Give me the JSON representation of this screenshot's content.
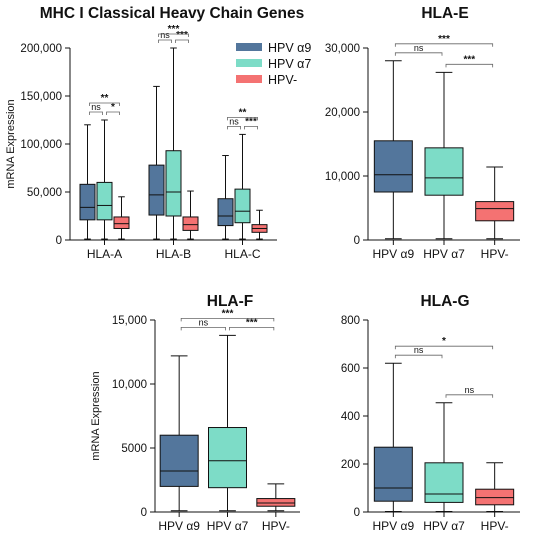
{
  "colors": {
    "hpv_a9": "#53769c",
    "hpv_a7": "#7ddcc7",
    "hpv_neg": "#f47272"
  },
  "chart_data": [
    {
      "type": "box",
      "title": "MHC I Classical Heavy Chain Genes",
      "ylabel": "mRNA Expression",
      "ylim": [
        0,
        200000
      ],
      "yticks": [
        "0",
        "50,000",
        "100,000",
        "150,000",
        "200,000"
      ],
      "legend": {
        "position": "top-right",
        "entries": [
          "HPV α9",
          "HPV α7",
          "HPV-"
        ]
      },
      "categories": [
        "HLA-A",
        "HLA-B",
        "HLA-C"
      ],
      "groups": [
        {
          "category": "HLA-A",
          "boxes": [
            {
              "series": "HPV α9",
              "min": 1000,
              "q1": 21000,
              "median": 34000,
              "q3": 58000,
              "max": 120000
            },
            {
              "series": "HPV α7",
              "min": 1000,
              "q1": 21000,
              "median": 36000,
              "q3": 60000,
              "max": 125000
            },
            {
              "series": "HPV-",
              "min": 1000,
              "q1": 12000,
              "median": 17000,
              "q3": 24000,
              "max": 45000
            }
          ],
          "sig": [
            {
              "from": 0,
              "to": 1,
              "label": "ns",
              "level": 0
            },
            {
              "from": 1,
              "to": 2,
              "label": "*",
              "level": 0
            },
            {
              "from": 0,
              "to": 2,
              "label": "**",
              "level": 1
            }
          ]
        },
        {
          "category": "HLA-B",
          "boxes": [
            {
              "series": "HPV α9",
              "min": 1000,
              "q1": 26000,
              "median": 47000,
              "q3": 78000,
              "max": 160000
            },
            {
              "series": "HPV α7",
              "min": 1000,
              "q1": 25000,
              "median": 50000,
              "q3": 93000,
              "max": 200000
            },
            {
              "series": "HPV-",
              "min": 1000,
              "q1": 10000,
              "median": 16000,
              "q3": 24000,
              "max": 51000
            }
          ],
          "sig": [
            {
              "from": 0,
              "to": 1,
              "label": "ns",
              "level": 0
            },
            {
              "from": 1,
              "to": 2,
              "label": "***",
              "level": 0
            },
            {
              "from": 0,
              "to": 2,
              "label": "***",
              "level": 1
            }
          ]
        },
        {
          "category": "HLA-C",
          "boxes": [
            {
              "series": "HPV α9",
              "min": 1000,
              "q1": 15000,
              "median": 25000,
              "q3": 43000,
              "max": 88000
            },
            {
              "series": "HPV α7",
              "min": 1000,
              "q1": 18000,
              "median": 30000,
              "q3": 53000,
              "max": 110000
            },
            {
              "series": "HPV-",
              "min": 1000,
              "q1": 8000,
              "median": 12000,
              "q3": 16000,
              "max": 31000
            }
          ],
          "sig": [
            {
              "from": 0,
              "to": 1,
              "label": "ns",
              "level": 0
            },
            {
              "from": 1,
              "to": 2,
              "label": "***",
              "level": 0
            },
            {
              "from": 0,
              "to": 2,
              "label": "**",
              "level": 1
            }
          ]
        }
      ]
    },
    {
      "type": "box",
      "title": "HLA-E",
      "ylabel": "",
      "ylim": [
        0,
        30000
      ],
      "yticks": [
        "0",
        "10,000",
        "20,000",
        "30,000"
      ],
      "categories": [
        "HPV α9",
        "HPV α7",
        "HPV-"
      ],
      "boxes": [
        {
          "series": "HPV α9",
          "min": 200,
          "q1": 7500,
          "median": 10200,
          "q3": 15500,
          "max": 28000
        },
        {
          "series": "HPV α7",
          "min": 200,
          "q1": 7000,
          "median": 9700,
          "q3": 14400,
          "max": 26200
        },
        {
          "series": "HPV-",
          "min": 200,
          "q1": 3000,
          "median": 4900,
          "q3": 6000,
          "max": 11400
        }
      ],
      "sig": [
        {
          "from": 0,
          "to": 1,
          "label": "ns",
          "level": 0
        },
        {
          "from": 1,
          "to": 2,
          "label": "***",
          "level": 0
        },
        {
          "from": 0,
          "to": 2,
          "label": "***",
          "level": 1
        }
      ]
    },
    {
      "type": "box",
      "title": "HLA-F",
      "ylabel": "mRNA Expression",
      "ylim": [
        0,
        15000
      ],
      "yticks": [
        "0",
        "5000",
        "10,000",
        "15,000"
      ],
      "categories": [
        "HPV α9",
        "HPV α7",
        "HPV-"
      ],
      "boxes": [
        {
          "series": "HPV α9",
          "min": 100,
          "q1": 2000,
          "median": 3200,
          "q3": 6000,
          "max": 12200
        },
        {
          "series": "HPV α7",
          "min": 100,
          "q1": 1900,
          "median": 4000,
          "q3": 6600,
          "max": 13800
        },
        {
          "series": "HPV-",
          "min": 100,
          "q1": 450,
          "median": 700,
          "q3": 1050,
          "max": 2200
        }
      ],
      "sig": [
        {
          "from": 0,
          "to": 1,
          "label": "ns",
          "level": 0
        },
        {
          "from": 1,
          "to": 2,
          "label": "***",
          "level": 0
        },
        {
          "from": 0,
          "to": 2,
          "label": "***",
          "level": 1
        }
      ]
    },
    {
      "type": "box",
      "title": "HLA-G",
      "ylabel": "",
      "ylim": [
        0,
        800
      ],
      "yticks": [
        "0",
        "200",
        "400",
        "600",
        "800"
      ],
      "categories": [
        "HPV α9",
        "HPV α7",
        "HPV-"
      ],
      "boxes": [
        {
          "series": "HPV α9",
          "min": 2,
          "q1": 45,
          "median": 100,
          "q3": 270,
          "max": 620
        },
        {
          "series": "HPV α7",
          "min": 2,
          "q1": 40,
          "median": 75,
          "q3": 205,
          "max": 455
        },
        {
          "series": "HPV-",
          "min": 2,
          "q1": 30,
          "median": 60,
          "q3": 95,
          "max": 205
        }
      ],
      "sig": [
        {
          "from": 0,
          "to": 1,
          "label": "ns",
          "level": 0
        },
        {
          "from": 1,
          "to": 2,
          "label": "ns",
          "level": 0
        },
        {
          "from": 0,
          "to": 2,
          "label": "*",
          "level": 1
        }
      ]
    }
  ]
}
